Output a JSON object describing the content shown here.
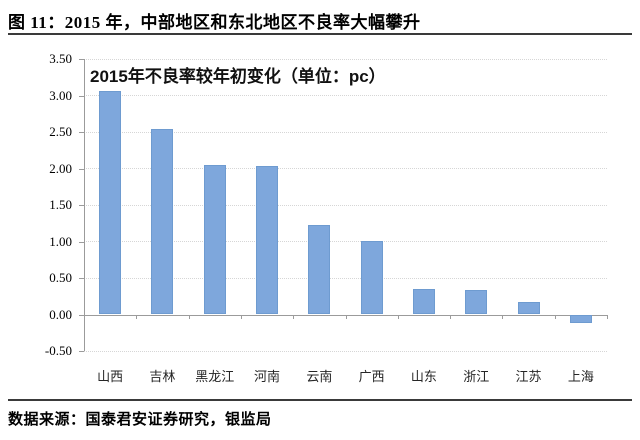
{
  "page": {
    "figure_title": "图 11：2015 年，中部地区和东北地区不良率大幅攀升",
    "source_note": "数据来源：国泰君安证券研究，银监局"
  },
  "chart_data": {
    "type": "bar",
    "title": "2015年不良率较年初变化（单位：pc）",
    "categories": [
      "山西",
      "吉林",
      "黑龙江",
      "河南",
      "云南",
      "广西",
      "山东",
      "浙江",
      "江苏",
      "上海"
    ],
    "values": [
      3.06,
      2.54,
      2.05,
      2.03,
      1.22,
      1.01,
      0.35,
      0.33,
      0.17,
      -0.11
    ],
    "xlabel": "",
    "ylabel": "",
    "ylim": [
      -0.5,
      3.5
    ],
    "ytick_step": 0.5,
    "ytick_labels": [
      "3.50",
      "3.00",
      "2.50",
      "2.00",
      "1.50",
      "1.00",
      "0.50",
      "0.00",
      "-0.50"
    ],
    "legend": "none",
    "grid": "horizontal-dotted",
    "bar_color": "#7ea7dc",
    "bar_border_color": "#6e9bd0",
    "axis_color": "#9b9b9b",
    "gridline_color": "#d6d6d6"
  }
}
